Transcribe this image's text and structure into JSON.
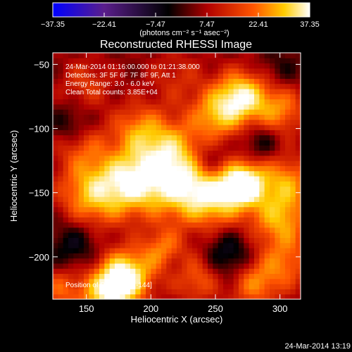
{
  "colorbar": {
    "ticks": [
      "-37.35",
      "-22.41",
      "-7.47",
      "7.47",
      "22.41",
      "37.35"
    ],
    "tick_values": [
      -37.35,
      -22.41,
      -7.47,
      7.47,
      22.41,
      37.35
    ],
    "range": [
      -37.35,
      37.35
    ],
    "units": "(photons cm⁻² s⁻¹ asec⁻²)"
  },
  "footer": {
    "timestamp": "24-Mar-2014 13:19"
  },
  "chart_data": {
    "type": "heatmap",
    "title": "Reconstructed RHESSI Image",
    "xlabel": "Heliocentric X (arcsec)",
    "ylabel": "Heliocentric Y (arcsec)",
    "xlim": [
      124,
      316
    ],
    "ylim": [
      -233,
      -41
    ],
    "x_ticks": [
      150,
      200,
      250,
      300
    ],
    "y_ticks": [
      -50,
      -100,
      -150,
      -200
    ],
    "colorscale": [
      "#0000ff",
      "#5a1e8c",
      "#000000",
      "#b00000",
      "#ff5500",
      "#ffcc00",
      "#ffffff"
    ],
    "annotations": [
      "24-Mar-2014 01:16:00.000 to 01:21:38.000",
      "Detectors: 3F 5F 6F 7F 8F 9F, Att 1",
      "Energy Range: 3.0 - 6.0 keV",
      "Clean    Total counts: 3.85E+04"
    ],
    "peak_label": "Position of Peak: [272,-144]",
    "peak": [
      272,
      -144
    ],
    "blobs": [
      {
        "x": 272,
        "y": -143,
        "v": 37,
        "r": 12
      },
      {
        "x": 188,
        "y": -140,
        "v": 30,
        "r": 18
      },
      {
        "x": 155,
        "y": -150,
        "v": 24,
        "r": 18
      },
      {
        "x": 225,
        "y": -145,
        "v": 26,
        "r": 18
      },
      {
        "x": 250,
        "y": -155,
        "v": 22,
        "r": 16
      },
      {
        "x": 300,
        "y": -170,
        "v": 22,
        "r": 16
      },
      {
        "x": 305,
        "y": -140,
        "v": 18,
        "r": 14
      },
      {
        "x": 270,
        "y": -75,
        "v": 30,
        "r": 14
      },
      {
        "x": 250,
        "y": -90,
        "v": 20,
        "r": 14
      },
      {
        "x": 300,
        "y": -85,
        "v": 18,
        "r": 14
      },
      {
        "x": 215,
        "y": -115,
        "v": 20,
        "r": 16
      },
      {
        "x": 190,
        "y": -100,
        "v": 16,
        "r": 14
      },
      {
        "x": 145,
        "y": -110,
        "v": 16,
        "r": 14
      },
      {
        "x": 180,
        "y": -215,
        "v": 34,
        "r": 14
      },
      {
        "x": 165,
        "y": -230,
        "v": 24,
        "r": 14
      },
      {
        "x": 210,
        "y": -195,
        "v": 18,
        "r": 12
      },
      {
        "x": 235,
        "y": -215,
        "v": 16,
        "r": 14
      },
      {
        "x": 280,
        "y": -220,
        "v": 18,
        "r": 14
      },
      {
        "x": 305,
        "y": -205,
        "v": 14,
        "r": 14
      },
      {
        "x": 130,
        "y": -225,
        "v": 14,
        "r": 12
      },
      {
        "x": 150,
        "y": -65,
        "v": 10,
        "r": 14
      },
      {
        "x": 220,
        "y": -60,
        "v": 8,
        "r": 16
      },
      {
        "x": 140,
        "y": -100,
        "v": -14,
        "r": 12
      },
      {
        "x": 140,
        "y": -190,
        "v": -10,
        "r": 14
      },
      {
        "x": 245,
        "y": -125,
        "v": -10,
        "r": 10
      },
      {
        "x": 285,
        "y": -110,
        "v": -9,
        "r": 10
      },
      {
        "x": 260,
        "y": -200,
        "v": -14,
        "r": 14
      },
      {
        "x": 300,
        "y": -55,
        "v": -6,
        "r": 12
      },
      {
        "x": 220,
        "y": -205,
        "v": -8,
        "r": 10
      }
    ],
    "base_level": 3,
    "grid": false
  }
}
